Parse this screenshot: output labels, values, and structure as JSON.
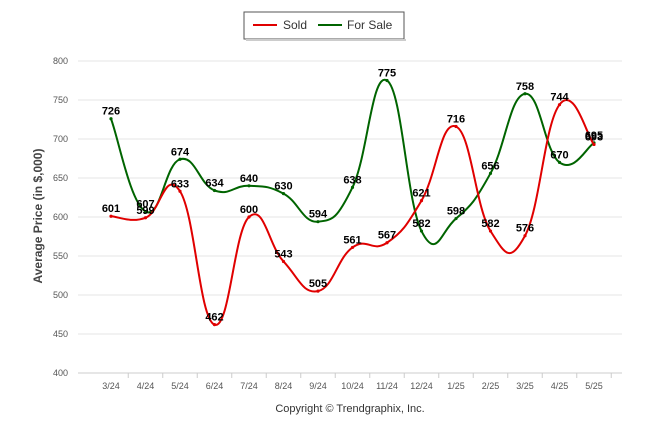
{
  "chart_data": {
    "type": "line",
    "ylabel": "Average Price (in $,000)",
    "xlabel": "",
    "ylim": [
      400,
      800
    ],
    "yticks": [
      400,
      450,
      500,
      550,
      600,
      650,
      700,
      750,
      800
    ],
    "categories": [
      "3/24",
      "4/24",
      "5/24",
      "6/24",
      "7/24",
      "8/24",
      "9/24",
      "10/24",
      "11/24",
      "12/24",
      "1/25",
      "2/25",
      "3/25",
      "4/25",
      "5/25"
    ],
    "grid": true,
    "legend_position": "top-center",
    "series": [
      {
        "name": "Sold",
        "color": "#e00000",
        "values": [
          601,
          599,
          633,
          462,
          600,
          543,
          505,
          561,
          567,
          621,
          716,
          582,
          576,
          744,
          693
        ]
      },
      {
        "name": "For Sale",
        "color": "#006400",
        "values": [
          726,
          607,
          674,
          634,
          640,
          630,
          594,
          638,
          775,
          582,
          598,
          656,
          758,
          670,
          695
        ]
      }
    ],
    "footer": "Copyright © Trendgraphix, Inc."
  }
}
